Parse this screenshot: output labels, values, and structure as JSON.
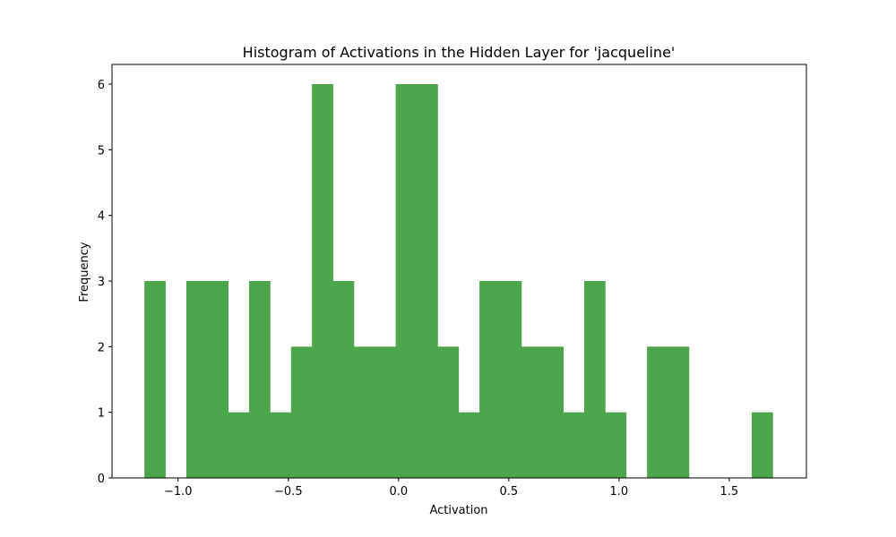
{
  "chart_data": {
    "type": "bar",
    "title": "Histogram of Activations in the Hidden Layer for 'jacqueline'",
    "xlabel": "Activation",
    "ylabel": "Frequency",
    "xlim": [
      -1.3,
      1.85
    ],
    "ylim": [
      0,
      6.3
    ],
    "bar_color": "#4ca64c",
    "grid": false,
    "bin_edges": [
      -1.153,
      -1.058,
      -0.963,
      -0.868,
      -0.773,
      -0.678,
      -0.583,
      -0.488,
      -0.393,
      -0.298,
      -0.203,
      -0.108,
      -0.013,
      0.082,
      0.177,
      0.272,
      0.367,
      0.462,
      0.557,
      0.652,
      0.747,
      0.842,
      0.937,
      1.032,
      1.127,
      1.222,
      1.317,
      1.412,
      1.507,
      1.602,
      1.697
    ],
    "counts": [
      3,
      0,
      3,
      3,
      1,
      3,
      1,
      2,
      6,
      3,
      2,
      2,
      6,
      6,
      2,
      1,
      3,
      3,
      2,
      2,
      1,
      3,
      1,
      0,
      2,
      2,
      0,
      0,
      0,
      1
    ],
    "x_ticks": [
      {
        "value": -1.0,
        "label": "−1.0"
      },
      {
        "value": -0.5,
        "label": "−0.5"
      },
      {
        "value": 0.0,
        "label": "0.0"
      },
      {
        "value": 0.5,
        "label": "0.5"
      },
      {
        "value": 1.0,
        "label": "1.0"
      },
      {
        "value": 1.5,
        "label": "1.5"
      }
    ],
    "y_ticks": [
      {
        "value": 0,
        "label": "0"
      },
      {
        "value": 1,
        "label": "1"
      },
      {
        "value": 2,
        "label": "2"
      },
      {
        "value": 3,
        "label": "3"
      },
      {
        "value": 4,
        "label": "4"
      },
      {
        "value": 5,
        "label": "5"
      },
      {
        "value": 6,
        "label": "6"
      }
    ]
  }
}
